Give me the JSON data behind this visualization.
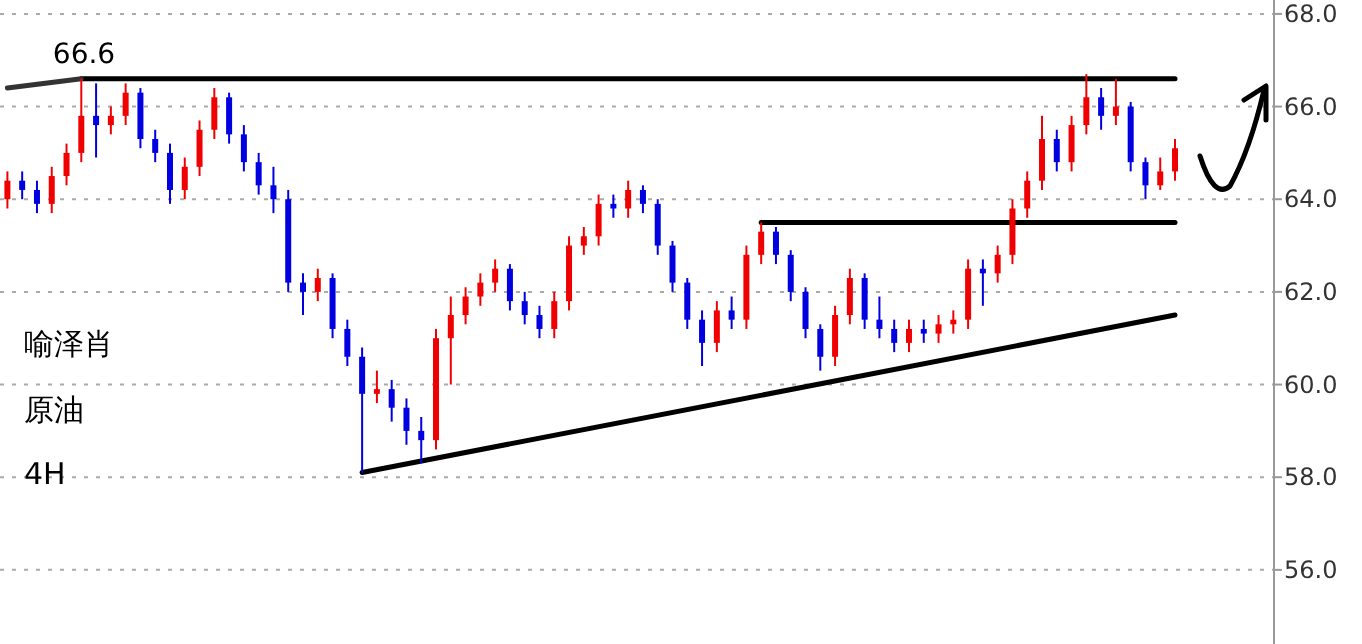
{
  "chart_data": {
    "type": "candlestick",
    "categories": [
      null,
      null,
      null,
      null,
      null,
      null,
      null,
      null,
      null,
      null,
      null,
      null,
      null,
      null,
      null,
      null,
      null,
      null,
      null,
      null,
      null,
      null,
      null,
      null,
      null,
      null,
      null,
      null,
      null,
      null,
      null,
      null,
      null,
      null,
      null,
      null,
      null,
      null,
      null,
      null,
      null,
      null,
      null,
      null,
      null,
      null,
      null,
      null,
      null,
      null,
      null,
      null,
      null,
      null,
      null,
      null,
      null,
      null,
      null,
      null,
      null,
      null,
      null,
      null,
      null,
      null,
      null,
      null,
      null,
      null,
      null,
      null,
      null,
      null,
      null,
      null,
      null,
      null,
      null,
      null
    ],
    "ohlc": [
      [
        64.0,
        64.6,
        63.8,
        64.4
      ],
      [
        64.4,
        64.6,
        64.0,
        64.2
      ],
      [
        64.2,
        64.4,
        63.7,
        63.9
      ],
      [
        63.9,
        64.7,
        63.7,
        64.5
      ],
      [
        64.5,
        65.2,
        64.3,
        65.0
      ],
      [
        65.0,
        66.6,
        64.8,
        65.8
      ],
      [
        65.8,
        66.5,
        64.9,
        65.6
      ],
      [
        65.6,
        66.0,
        65.4,
        65.8
      ],
      [
        65.8,
        66.5,
        65.6,
        66.3
      ],
      [
        66.3,
        66.4,
        65.1,
        65.3
      ],
      [
        65.3,
        65.5,
        64.8,
        65.0
      ],
      [
        65.0,
        65.2,
        63.9,
        64.2
      ],
      [
        64.2,
        64.9,
        64.0,
        64.7
      ],
      [
        64.7,
        65.7,
        64.5,
        65.5
      ],
      [
        65.5,
        66.4,
        65.3,
        66.2
      ],
      [
        66.2,
        66.3,
        65.2,
        65.4
      ],
      [
        65.4,
        65.6,
        64.6,
        64.8
      ],
      [
        64.8,
        65.0,
        64.1,
        64.3
      ],
      [
        64.3,
        64.7,
        63.7,
        64.0
      ],
      [
        64.0,
        64.2,
        62.0,
        62.2
      ],
      [
        62.2,
        62.4,
        61.5,
        62.0
      ],
      [
        62.0,
        62.5,
        61.8,
        62.3
      ],
      [
        62.3,
        62.4,
        61.0,
        61.2
      ],
      [
        61.2,
        61.4,
        60.4,
        60.6
      ],
      [
        60.6,
        60.8,
        58.1,
        59.8
      ],
      [
        59.8,
        60.3,
        59.6,
        59.9
      ],
      [
        59.9,
        60.1,
        59.2,
        59.5
      ],
      [
        59.5,
        59.7,
        58.7,
        59.0
      ],
      [
        59.0,
        59.3,
        58.3,
        58.8
      ],
      [
        58.8,
        61.2,
        58.6,
        61.0
      ],
      [
        61.0,
        61.9,
        60.0,
        61.5
      ],
      [
        61.5,
        62.1,
        61.3,
        61.9
      ],
      [
        61.9,
        62.4,
        61.7,
        62.2
      ],
      [
        62.2,
        62.7,
        62.0,
        62.5
      ],
      [
        62.5,
        62.6,
        61.6,
        61.8
      ],
      [
        61.8,
        62.0,
        61.3,
        61.5
      ],
      [
        61.5,
        61.7,
        61.0,
        61.2
      ],
      [
        61.2,
        62.0,
        61.0,
        61.8
      ],
      [
        61.8,
        63.2,
        61.6,
        63.0
      ],
      [
        63.0,
        63.4,
        62.8,
        63.2
      ],
      [
        63.2,
        64.1,
        63.0,
        63.9
      ],
      [
        63.9,
        64.1,
        63.6,
        63.8
      ],
      [
        63.8,
        64.4,
        63.6,
        64.2
      ],
      [
        64.2,
        64.3,
        63.7,
        63.9
      ],
      [
        63.9,
        64.0,
        62.8,
        63.0
      ],
      [
        63.0,
        63.1,
        62.0,
        62.2
      ],
      [
        62.2,
        62.3,
        61.2,
        61.4
      ],
      [
        61.4,
        61.6,
        60.4,
        60.9
      ],
      [
        60.9,
        61.8,
        60.7,
        61.6
      ],
      [
        61.6,
        61.9,
        61.2,
        61.4
      ],
      [
        61.4,
        63.0,
        61.2,
        62.8
      ],
      [
        62.8,
        63.5,
        62.6,
        63.3
      ],
      [
        63.3,
        63.4,
        62.6,
        62.8
      ],
      [
        62.8,
        62.9,
        61.8,
        62.0
      ],
      [
        62.0,
        62.1,
        61.0,
        61.2
      ],
      [
        61.2,
        61.3,
        60.3,
        60.6
      ],
      [
        60.6,
        61.7,
        60.4,
        61.5
      ],
      [
        61.5,
        62.5,
        61.3,
        62.3
      ],
      [
        62.3,
        62.4,
        61.2,
        61.4
      ],
      [
        61.4,
        61.9,
        61.0,
        61.2
      ],
      [
        61.2,
        61.4,
        60.7,
        60.9
      ],
      [
        60.9,
        61.4,
        60.7,
        61.2
      ],
      [
        61.2,
        61.4,
        60.9,
        61.1
      ],
      [
        61.1,
        61.5,
        60.9,
        61.3
      ],
      [
        61.3,
        61.6,
        61.1,
        61.4
      ],
      [
        61.4,
        62.7,
        61.2,
        62.5
      ],
      [
        62.5,
        62.7,
        61.7,
        62.4
      ],
      [
        62.4,
        63.0,
        62.2,
        62.8
      ],
      [
        62.8,
        64.0,
        62.6,
        63.8
      ],
      [
        63.8,
        64.6,
        63.6,
        64.4
      ],
      [
        64.4,
        65.8,
        64.2,
        65.3
      ],
      [
        65.3,
        65.5,
        64.6,
        64.8
      ],
      [
        64.8,
        65.8,
        64.6,
        65.6
      ],
      [
        65.6,
        66.7,
        65.4,
        66.2
      ],
      [
        66.2,
        66.4,
        65.5,
        65.8
      ],
      [
        65.8,
        66.6,
        65.6,
        66.0
      ],
      [
        66.0,
        66.1,
        64.6,
        64.8
      ],
      [
        64.8,
        64.9,
        64.0,
        64.3
      ],
      [
        64.3,
        64.9,
        64.2,
        64.6
      ],
      [
        64.6,
        65.3,
        64.4,
        65.1
      ]
    ],
    "colors": [
      "#f00000",
      "#0000e0",
      "#0000e0",
      "#f00000",
      "#f00000",
      "#f00000",
      "#0000e0",
      "#f00000",
      "#f00000",
      "#0000e0",
      "#0000e0",
      "#0000e0",
      "#f00000",
      "#f00000",
      "#f00000",
      "#0000e0",
      "#0000e0",
      "#0000e0",
      "#0000e0",
      "#0000e0",
      "#0000e0",
      "#f00000",
      "#0000e0",
      "#0000e0",
      "#0000e0",
      "#f00000",
      "#0000e0",
      "#0000e0",
      "#0000e0",
      "#f00000",
      "#f00000",
      "#f00000",
      "#f00000",
      "#f00000",
      "#0000e0",
      "#0000e0",
      "#0000e0",
      "#f00000",
      "#f00000",
      "#f00000",
      "#f00000",
      "#0000e0",
      "#f00000",
      "#0000e0",
      "#0000e0",
      "#0000e0",
      "#0000e0",
      "#0000e0",
      "#f00000",
      "#0000e0",
      "#f00000",
      "#f00000",
      "#0000e0",
      "#0000e0",
      "#0000e0",
      "#0000e0",
      "#f00000",
      "#f00000",
      "#0000e0",
      "#0000e0",
      "#0000e0",
      "#f00000",
      "#0000e0",
      "#f00000",
      "#f00000",
      "#f00000",
      "#0000e0",
      "#f00000",
      "#f00000",
      "#f00000",
      "#f00000",
      "#0000e0",
      "#f00000",
      "#f00000",
      "#0000e0",
      "#f00000",
      "#0000e0",
      "#0000e0",
      "#f00000",
      "#f00000"
    ],
    "series": [
      {
        "type": "line",
        "color": "#000000",
        "values": [
          null,
          null,
          null,
          null,
          null,
          66.6,
          null,
          null,
          null,
          null,
          null,
          null,
          null,
          null,
          null,
          null,
          null,
          null,
          null,
          null,
          null,
          null,
          null,
          null,
          null,
          null,
          null,
          null,
          null,
          null,
          null,
          null,
          null,
          null,
          null,
          null,
          null,
          null,
          null,
          null,
          null,
          null,
          null,
          null,
          null,
          null,
          null,
          null,
          null,
          null,
          null,
          null,
          null,
          null,
          null,
          null,
          null,
          null,
          null,
          null,
          null,
          null,
          null,
          null,
          null,
          null,
          null,
          null,
          null,
          null,
          null,
          null,
          null,
          null,
          null,
          null,
          null,
          null,
          null,
          66.6
        ]
      },
      {
        "type": "line",
        "color": "#000000",
        "values": [
          null,
          null,
          null,
          null,
          null,
          null,
          null,
          null,
          null,
          null,
          null,
          null,
          null,
          null,
          null,
          null,
          null,
          null,
          null,
          null,
          null,
          null,
          null,
          null,
          null,
          null,
          null,
          null,
          null,
          null,
          null,
          null,
          null,
          null,
          null,
          null,
          null,
          null,
          null,
          null,
          null,
          null,
          null,
          null,
          null,
          null,
          null,
          null,
          null,
          null,
          null,
          63.5,
          null,
          null,
          null,
          null,
          null,
          null,
          null,
          null,
          null,
          null,
          null,
          null,
          null,
          null,
          null,
          null,
          null,
          null,
          null,
          null,
          null,
          null,
          null,
          null,
          null,
          null,
          null,
          63.5
        ]
      },
      {
        "type": "line",
        "color": "#000000",
        "values": [
          null,
          null,
          null,
          null,
          null,
          null,
          null,
          null,
          null,
          null,
          null,
          null,
          null,
          null,
          null,
          null,
          null,
          null,
          null,
          null,
          null,
          null,
          null,
          null,
          58.1,
          null,
          null,
          null,
          null,
          null,
          null,
          null,
          null,
          null,
          null,
          null,
          null,
          null,
          null,
          null,
          null,
          null,
          null,
          null,
          null,
          null,
          null,
          null,
          null,
          null,
          null,
          null,
          null,
          null,
          null,
          null,
          null,
          null,
          null,
          null,
          null,
          null,
          null,
          null,
          null,
          null,
          null,
          null,
          null,
          null,
          null,
          null,
          null,
          null,
          null,
          null,
          null,
          null,
          null,
          61.5
        ]
      },
      {
        "type": "line",
        "color": "#333333",
        "values": [
          66.4,
          null,
          null,
          null,
          null,
          66.6,
          null,
          null,
          null,
          null,
          null,
          null,
          null,
          null,
          null,
          null,
          null,
          null,
          null,
          null,
          null,
          null,
          null,
          null,
          null,
          null,
          null,
          null,
          null,
          null,
          null,
          null,
          null,
          null,
          null,
          null,
          null,
          null,
          null,
          null,
          null,
          null,
          null,
          null,
          null,
          null,
          null,
          null,
          null,
          null,
          null,
          null,
          null,
          null,
          null,
          null,
          null,
          null,
          null,
          null,
          null,
          null,
          null,
          null,
          null,
          null,
          null,
          null,
          null,
          null,
          null,
          null,
          null,
          null,
          null,
          null,
          null,
          null,
          null,
          null
        ]
      }
    ],
    "ylim": [
      54.4,
      68.3
    ],
    "yticks": [
      {
        "value": 56,
        "label": "56.0"
      },
      {
        "value": 58,
        "label": "58.0"
      },
      {
        "value": 60,
        "label": "60.0"
      },
      {
        "value": 62,
        "label": "62.0"
      },
      {
        "value": 64,
        "label": "64.0"
      },
      {
        "value": 66,
        "label": "66.0"
      },
      {
        "value": 68,
        "label": "68.0"
      }
    ],
    "tick_labels": "y",
    "grid": "y",
    "annotations": [
      {
        "text": "66.6",
        "y": 66.6
      },
      "喻泽肖",
      "原油",
      "4H"
    ]
  }
}
